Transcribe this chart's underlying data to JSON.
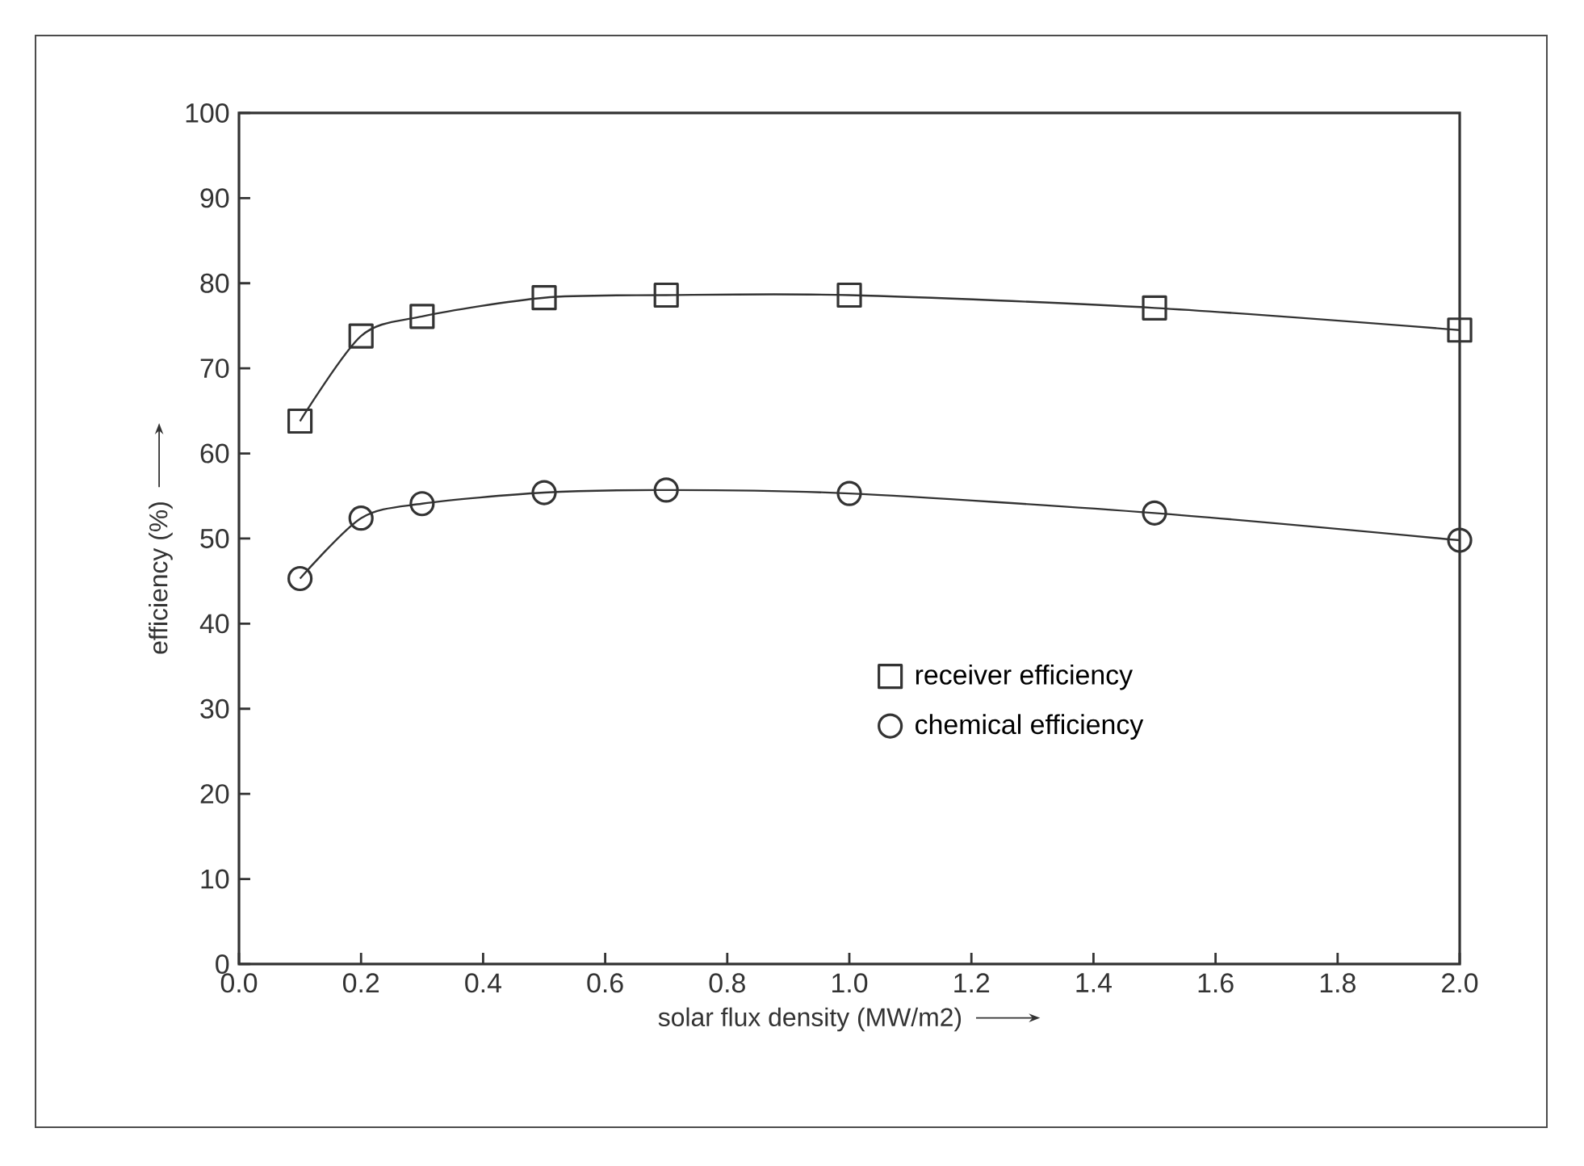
{
  "chart_data": {
    "type": "line",
    "xlabel": "solar flux density (MW/m2)",
    "ylabel": "efficiency (%)",
    "x": [
      0.1,
      0.2,
      0.3,
      0.5,
      0.7,
      1.0,
      1.5,
      2.0
    ],
    "series": [
      {
        "name": "receiver efficiency",
        "color": "#333333",
        "marker": "square",
        "values": [
          63.8,
          73.8,
          76.1,
          78.3,
          78.6,
          78.6,
          77.1,
          74.5
        ]
      },
      {
        "name": "chemical efficiency",
        "color": "#333333",
        "marker": "circle",
        "values": [
          45.3,
          52.4,
          54.1,
          55.4,
          55.7,
          55.3,
          53.0,
          49.8
        ]
      }
    ],
    "xlim": [
      0.0,
      2.0
    ],
    "xticks": [
      {
        "value": 0.0,
        "label": "0.0"
      },
      {
        "value": 0.2,
        "label": "0.2"
      },
      {
        "value": 0.4,
        "label": "0.4"
      },
      {
        "value": 0.6,
        "label": "0.6"
      },
      {
        "value": 0.8,
        "label": "0.8"
      },
      {
        "value": 1.0,
        "label": "1.0"
      },
      {
        "value": 1.2,
        "label": "1.2"
      },
      {
        "value": 1.4,
        "label": "1.4"
      },
      {
        "value": 1.6,
        "label": "1.6"
      },
      {
        "value": 1.8,
        "label": "1.8"
      },
      {
        "value": 2.0,
        "label": "2.0"
      }
    ],
    "ylim": [
      0,
      100
    ],
    "yticks": [
      0,
      10,
      20,
      30,
      40,
      50,
      60,
      70,
      80,
      90,
      100
    ],
    "grid": false,
    "legend": "center",
    "line_style": "solid"
  }
}
